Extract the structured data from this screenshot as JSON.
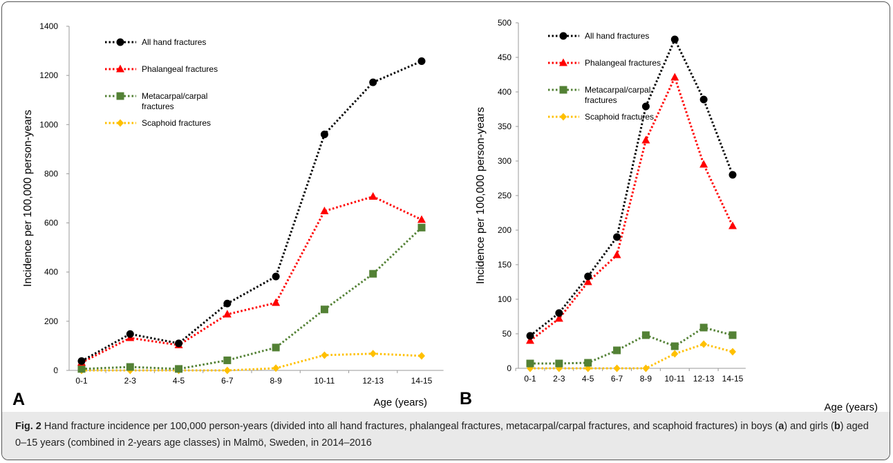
{
  "chart_data": [
    {
      "type": "line",
      "panel_label": "A",
      "xlabel": "Age (years)",
      "ylabel": "Incidence per 100,000 person-years",
      "ylim": [
        0,
        1400
      ],
      "yticks": [
        0,
        200,
        400,
        600,
        800,
        1000,
        1200,
        1400
      ],
      "categories": [
        "0-1",
        "2-3",
        "4-5",
        "6-7",
        "8-9",
        "10-11",
        "12-13",
        "14-15"
      ],
      "grid": false,
      "legend_position": "top-left",
      "series": [
        {
          "name": "All hand fractures",
          "color": "#000000",
          "marker": "circle",
          "values": [
            38,
            148,
            110,
            272,
            382,
            960,
            1172,
            1258
          ]
        },
        {
          "name": "Phalangeal fractures",
          "color": "#ff0000",
          "marker": "triangle",
          "values": [
            32,
            132,
            103,
            228,
            275,
            648,
            707,
            613
          ]
        },
        {
          "name": "Metacarpal/carpal fractures",
          "color": "#538135",
          "marker": "square",
          "values": [
            6,
            14,
            6,
            41,
            93,
            248,
            393,
            581
          ]
        },
        {
          "name": "Scaphoid fractures",
          "color": "#ffc000",
          "marker": "diamond",
          "values": [
            0,
            0,
            0,
            0,
            9,
            62,
            68,
            59
          ]
        }
      ]
    },
    {
      "type": "line",
      "panel_label": "B",
      "xlabel": "Age (years)",
      "ylabel": "Incidence per 100,000 person-years",
      "ylim": [
        0,
        500
      ],
      "yticks": [
        0,
        50,
        100,
        150,
        200,
        250,
        300,
        350,
        400,
        450,
        500
      ],
      "categories": [
        "0-1",
        "2-3",
        "4-5",
        "6-7",
        "8-9",
        "10-11",
        "12-13",
        "14-15"
      ],
      "grid": false,
      "legend_position": "top-left",
      "series": [
        {
          "name": "All hand fractures",
          "color": "#000000",
          "marker": "circle",
          "values": [
            47,
            80,
            133,
            190,
            379,
            476,
            389,
            280
          ]
        },
        {
          "name": "Phalangeal fractures",
          "color": "#ff0000",
          "marker": "triangle",
          "values": [
            40,
            72,
            125,
            164,
            330,
            421,
            295,
            206
          ]
        },
        {
          "name": "Metacarpal/carpal fractures",
          "color": "#538135",
          "marker": "square",
          "values": [
            7,
            7,
            8,
            26,
            48,
            32,
            59,
            48
          ]
        },
        {
          "name": "Scaphoid fractures",
          "color": "#ffc000",
          "marker": "diamond",
          "values": [
            0,
            0,
            0,
            0,
            0,
            21,
            35,
            24
          ]
        }
      ]
    }
  ],
  "caption": {
    "label": "Fig. 2",
    "text_1": " Hand fracture incidence per 100,000 person-years (divided into all hand fractures, phalangeal fractures, metacarpal/carpal fractures, and scaphoid fractures) in boys (",
    "a": "a",
    "text_2": ") and girls (",
    "b": "b",
    "text_3": ") aged 0–15 years (combined in 2-years age classes) in Malmö, Sweden, in 2014–2016"
  }
}
